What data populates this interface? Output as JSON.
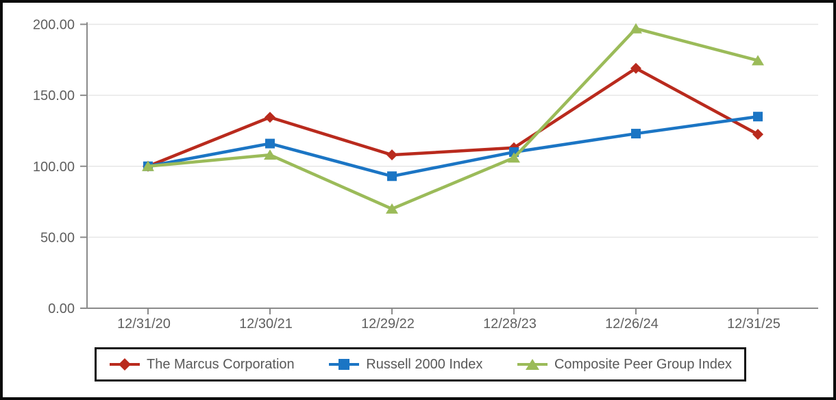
{
  "chart_data": {
    "type": "line",
    "x_labels": [
      "12/31/20",
      "12/30/21",
      "12/29/22",
      "12/28/23",
      "12/26/24",
      "12/31/25"
    ],
    "y_ticks": [
      0,
      50,
      100,
      150,
      200
    ],
    "y_tick_labels": [
      "0.00",
      "50.00",
      "100.00",
      "150.00",
      "200.00"
    ],
    "ylim": [
      0,
      200
    ],
    "grid": true,
    "legend_position": "bottom",
    "series": [
      {
        "name": "The Marcus Corporation",
        "marker": "diamond",
        "color": "#b92a1d",
        "values": [
          100,
          134.5,
          108,
          113,
          169,
          122.5
        ]
      },
      {
        "name": "Russell 2000 Index",
        "marker": "square",
        "color": "#1b75c4",
        "values": [
          100,
          116,
          93,
          110,
          123,
          135
        ]
      },
      {
        "name": "Composite Peer Group Index",
        "marker": "triangle",
        "color": "#9bbb59",
        "values": [
          100,
          108,
          70,
          106,
          197,
          174.5
        ]
      }
    ],
    "styles": {
      "axis_color": "#8a8a8a",
      "gridline_color": "#e6e6e6",
      "tick_label_color": "#5f5f5f"
    }
  }
}
